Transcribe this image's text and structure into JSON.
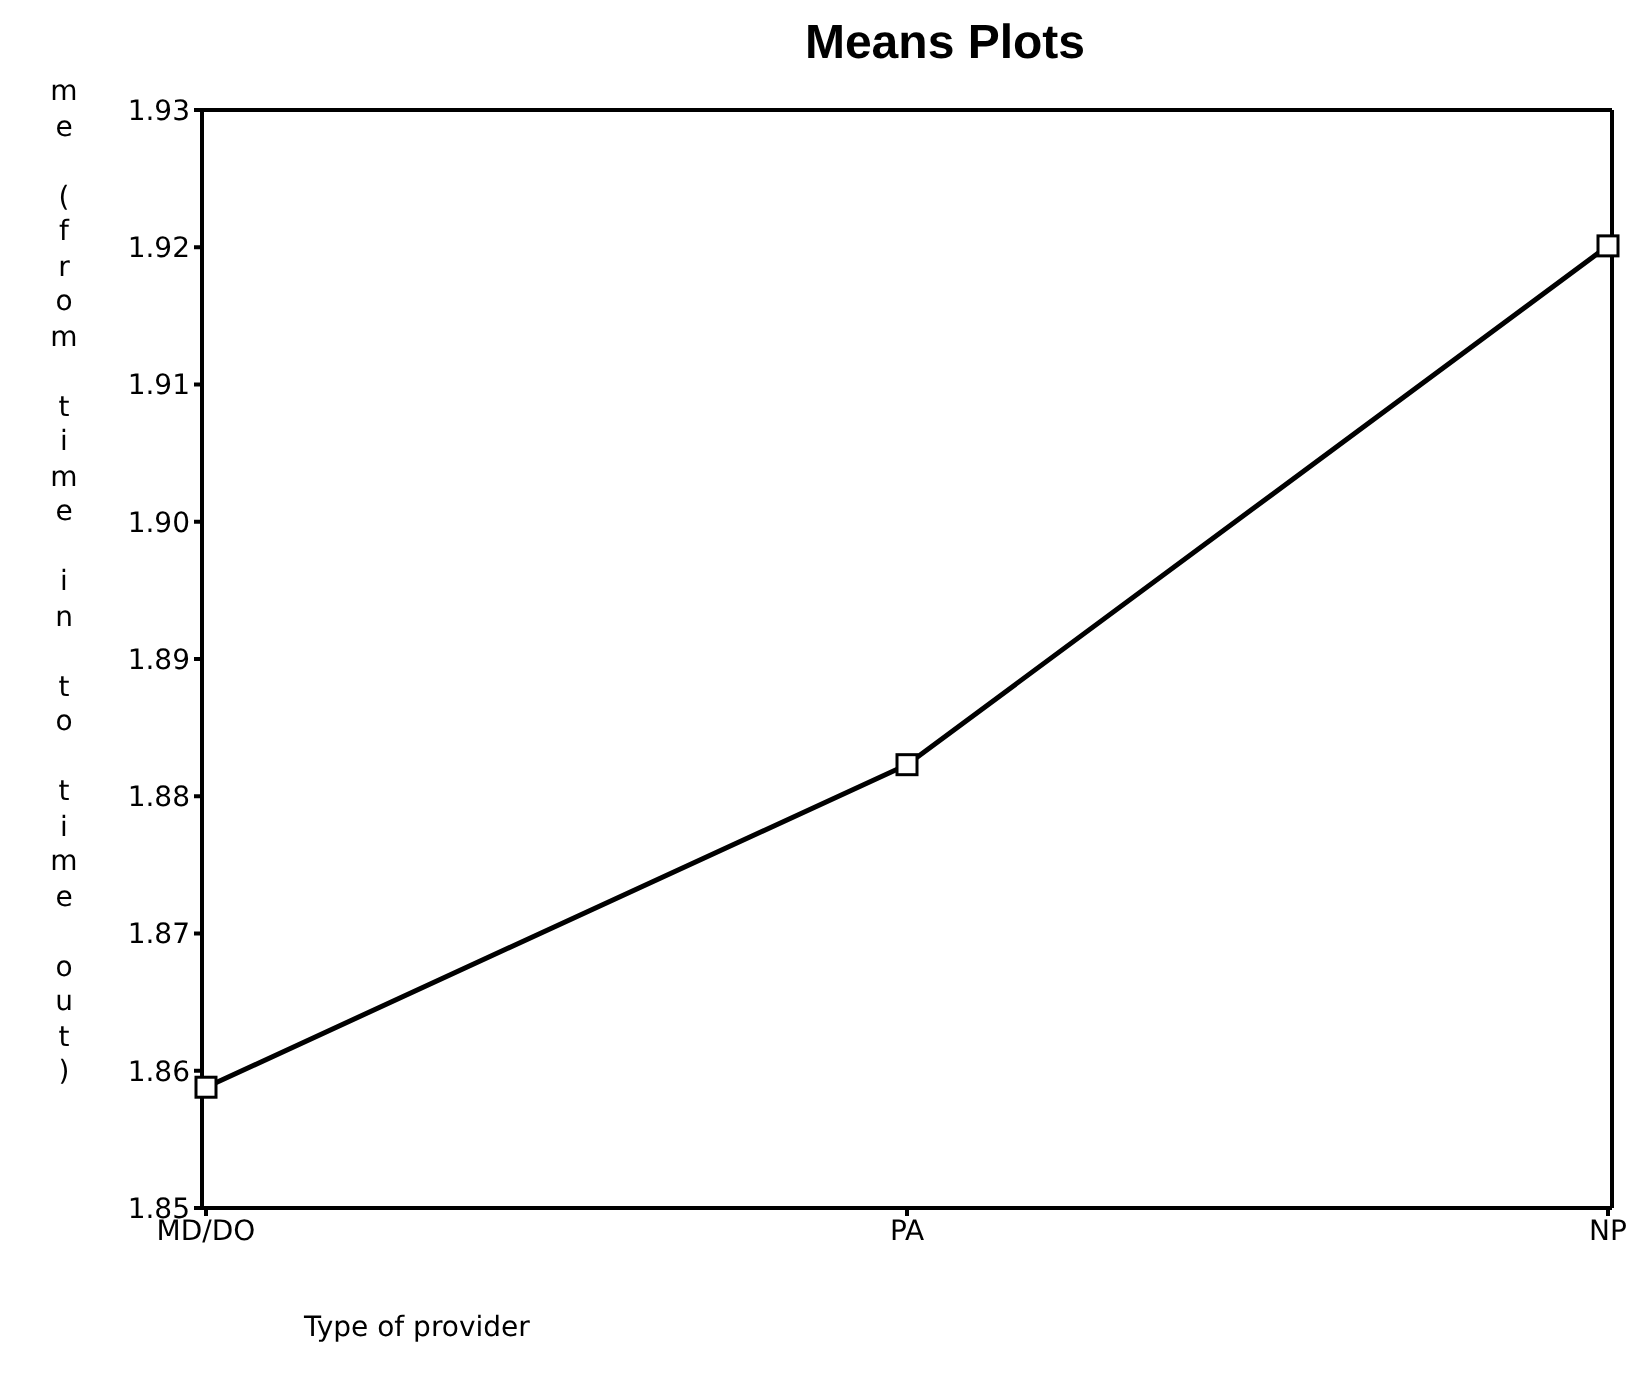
{
  "chart_data": {
    "type": "line",
    "title": "Means Plots",
    "xlabel": "Type of provider",
    "ylabel": "me (from time in to time out)",
    "categories": [
      "MD/DO",
      "PA",
      "NP"
    ],
    "series": [
      {
        "color": "#000000",
        "values": [
          1.8588,
          1.8823,
          1.9201
        ]
      }
    ],
    "ylim": [
      1.85,
      1.93
    ],
    "yticks": [
      {
        "value": 1.85,
        "label": "1.85"
      },
      {
        "value": 1.86,
        "label": "1.86"
      },
      {
        "value": 1.87,
        "label": "1.87"
      },
      {
        "value": 1.88,
        "label": "1.88"
      },
      {
        "value": 1.89,
        "label": "1.89"
      },
      {
        "value": 1.9,
        "label": "1.90"
      },
      {
        "value": 1.91,
        "label": "1.91"
      },
      {
        "value": 1.92,
        "label": "1.92"
      },
      {
        "value": 1.93,
        "label": "1.93"
      }
    ],
    "marker": "square",
    "line_style": "solid",
    "grid": false,
    "legend": false
  }
}
